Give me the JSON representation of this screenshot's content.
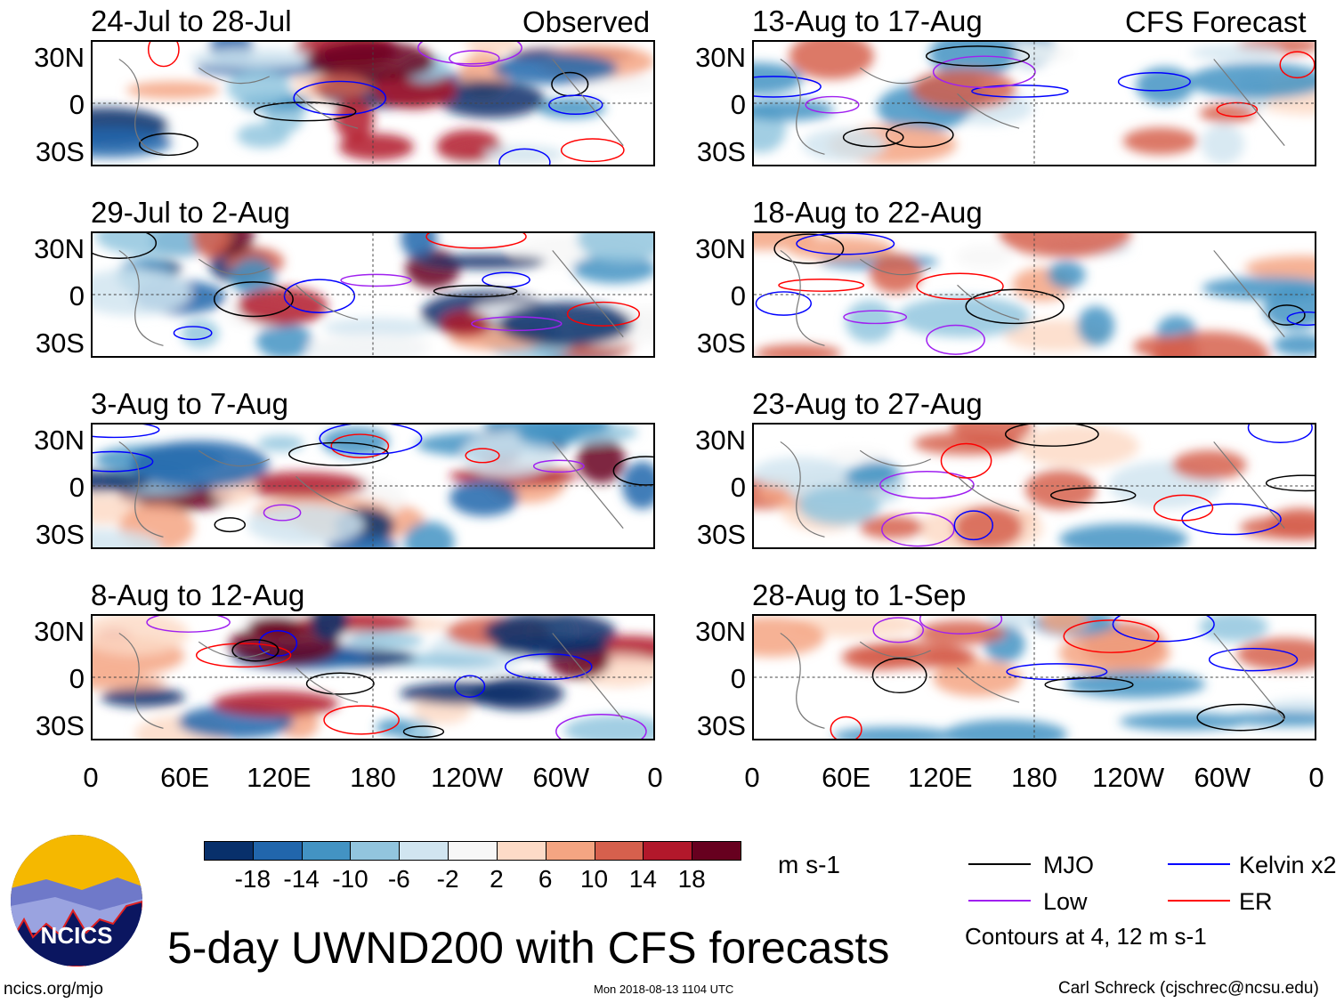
{
  "header": {
    "left_label": "Observed",
    "right_label": "CFS Forecast"
  },
  "panels_left": [
    "24-Jul to 28-Jul",
    "29-Jul to 2-Aug",
    "3-Aug to 7-Aug",
    "8-Aug to 12-Aug"
  ],
  "panels_right": [
    "13-Aug to 17-Aug",
    "18-Aug to 22-Aug",
    "23-Aug to 27-Aug",
    "28-Aug to 1-Sep"
  ],
  "lat_labels": [
    "30N",
    "0",
    "30S"
  ],
  "lon_labels": [
    "0",
    "60E",
    "120E",
    "180",
    "120W",
    "60W",
    "0"
  ],
  "colorbar": {
    "colors": [
      "#08306b",
      "#2166ac",
      "#4393c3",
      "#92c5de",
      "#d1e5f0",
      "#f7f7f7",
      "#fddbc7",
      "#f4a582",
      "#d6604d",
      "#b2182b",
      "#67001f"
    ],
    "labels": [
      "-18",
      "-14",
      "-10",
      "-6",
      "-2",
      "2",
      "6",
      "10",
      "14",
      "18"
    ],
    "units": "m s-1"
  },
  "legend": {
    "items": [
      {
        "label": "MJO",
        "color": "#000000"
      },
      {
        "label": "Kelvin x2",
        "color": "#0000ff"
      },
      {
        "label": "Low",
        "color": "#a020f0"
      },
      {
        "label": "ER",
        "color": "#ff0000"
      }
    ],
    "note": "Contours at 4, 12 m s-1"
  },
  "logo": {
    "text": "NCICS"
  },
  "title": "5-day UWND200 with CFS forecasts",
  "footer": {
    "url": "ncics.org/mjo",
    "timestamp": "Mon 2018-08-13 1104 UTC",
    "credit": "Carl Schreck (cjschrec@ncsu.edu)"
  }
}
